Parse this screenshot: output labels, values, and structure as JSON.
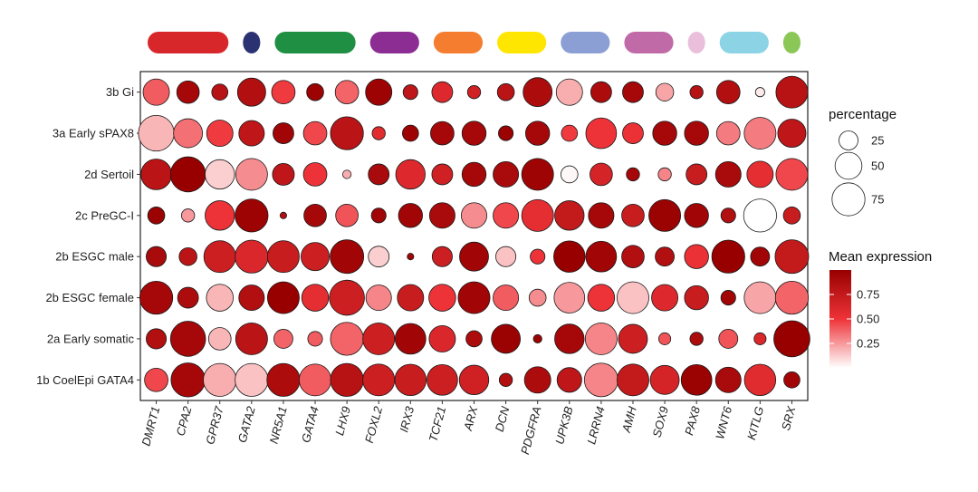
{
  "chart_data": {
    "type": "dotplot",
    "rows": [
      "3b Gi",
      "3a Early sPAX8",
      "2d Sertoil",
      "2c PreGC-I",
      "2b ESGC male",
      "2b ESGC female",
      "2a Early somatic",
      "1b CoelEpi GATA4"
    ],
    "genes": [
      "DMRT1",
      "CPA2",
      "GPR37",
      "GATA2",
      "NR5A1",
      "GATA4",
      "LHX9",
      "FOXL2",
      "IRX3",
      "TCF21",
      "ARX",
      "DCN",
      "PDGFRA",
      "UPK3B",
      "LRRN4",
      "AMH",
      "SOX9",
      "PAX8",
      "WNT6",
      "KITLG",
      "SRX"
    ],
    "group_bars": [
      {
        "span": [
          0,
          2
        ],
        "color": "#d7272b"
      },
      {
        "span": [
          3,
          3
        ],
        "color": "#2b3272"
      },
      {
        "span": [
          4,
          6
        ],
        "color": "#1f8f43"
      },
      {
        "span": [
          7,
          8
        ],
        "color": "#8b2d93"
      },
      {
        "span": [
          9,
          10
        ],
        "color": "#f47d30"
      },
      {
        "span": [
          11,
          12
        ],
        "color": "#ffe600"
      },
      {
        "span": [
          13,
          14
        ],
        "color": "#8c9fd4"
      },
      {
        "span": [
          15,
          16
        ],
        "color": "#c16aa8"
      },
      {
        "span": [
          17,
          17
        ],
        "color": "#e9bfdc"
      },
      {
        "span": [
          18,
          19
        ],
        "color": "#8cd3e6"
      },
      {
        "span": [
          20,
          20
        ],
        "color": "#8bc756"
      }
    ],
    "percentage": [
      [
        48,
        35,
        18,
        55,
        38,
        20,
        38,
        48,
        15,
        30,
        12,
        20,
        58,
        48,
        30,
        30,
        22,
        12,
        38,
        6,
        70
      ],
      [
        88,
        58,
        48,
        45,
        30,
        38,
        75,
        12,
        18,
        38,
        40,
        15,
        40,
        18,
        65,
        30,
        40,
        40,
        38,
        70,
        55
      ],
      [
        65,
        85,
        60,
        70,
        33,
        38,
        5,
        30,
        60,
        30,
        40,
        45,
        70,
        20,
        35,
        12,
        12,
        30,
        45,
        48,
        70
      ],
      [
        20,
        12,
        60,
        75,
        3,
        35,
        35,
        15,
        40,
        45,
        45,
        45,
        70,
        60,
        45,
        35,
        70,
        40,
        15,
        75,
        20
      ],
      [
        28,
        22,
        70,
        75,
        70,
        55,
        78,
        30,
        3,
        28,
        58,
        28,
        15,
        68,
        65,
        35,
        25,
        40,
        75,
        25,
        78
      ],
      [
        75,
        30,
        50,
        45,
        70,
        50,
        85,
        45,
        48,
        50,
        70,
        45,
        20,
        65,
        50,
        70,
        48,
        40,
        15,
        70,
        75
      ],
      [
        28,
        85,
        35,
        70,
        25,
        15,
        75,
        70,
        65,
        48,
        18,
        58,
        5,
        60,
        70,
        58,
        10,
        12,
        25,
        10,
        90
      ],
      [
        38,
        80,
        75,
        75,
        75,
        70,
        75,
        70,
        68,
        65,
        60,
        12,
        48,
        42,
        78,
        70,
        58,
        65,
        45,
        68,
        18
      ]
    ],
    "mean_expression": [
      [
        0.4,
        0.92,
        0.82,
        0.85,
        0.48,
        0.97,
        0.38,
        0.97,
        0.78,
        0.6,
        0.68,
        0.8,
        0.88,
        0.2,
        0.88,
        0.92,
        0.22,
        0.82,
        0.85,
        0.05,
        0.82
      ],
      [
        0.18,
        0.35,
        0.48,
        0.78,
        0.95,
        0.45,
        0.8,
        0.58,
        0.97,
        0.92,
        0.92,
        0.98,
        0.92,
        0.48,
        0.5,
        0.52,
        0.92,
        0.92,
        0.32,
        0.32,
        0.78
      ],
      [
        0.8,
        1.0,
        0.12,
        0.28,
        0.78,
        0.5,
        0.2,
        0.9,
        0.6,
        0.68,
        0.92,
        0.9,
        0.96,
        0.02,
        0.65,
        0.92,
        0.3,
        0.72,
        0.9,
        0.55,
        0.45
      ],
      [
        0.98,
        0.25,
        0.5,
        0.97,
        0.85,
        0.92,
        0.42,
        0.95,
        0.95,
        0.9,
        0.28,
        0.45,
        0.55,
        0.75,
        0.92,
        0.72,
        0.98,
        0.95,
        0.85,
        0.0,
        0.72
      ],
      [
        0.9,
        0.8,
        0.7,
        0.62,
        0.72,
        0.7,
        0.95,
        0.12,
        0.95,
        0.7,
        0.95,
        0.15,
        0.5,
        1.0,
        0.95,
        0.85,
        0.85,
        0.52,
        1.0,
        0.95,
        0.75
      ],
      [
        0.92,
        0.88,
        0.18,
        0.85,
        1.0,
        0.55,
        0.7,
        0.3,
        0.72,
        0.5,
        0.95,
        0.4,
        0.28,
        0.25,
        0.5,
        0.15,
        0.6,
        0.72,
        0.95,
        0.22,
        0.38
      ],
      [
        0.85,
        0.92,
        0.18,
        0.8,
        0.38,
        0.4,
        0.38,
        0.7,
        0.95,
        0.62,
        0.88,
        0.98,
        0.98,
        0.92,
        0.3,
        0.7,
        0.42,
        0.88,
        0.42,
        0.62,
        1.0
      ],
      [
        0.45,
        0.92,
        0.2,
        0.15,
        0.88,
        0.4,
        0.82,
        0.7,
        0.72,
        0.7,
        0.68,
        0.85,
        0.88,
        0.78,
        0.3,
        0.75,
        0.65,
        0.98,
        0.9,
        0.58,
        0.95
      ]
    ],
    "legend_percentage": {
      "title": "percentage",
      "values": [
        25,
        50,
        75
      ]
    },
    "legend_expression": {
      "title": "Mean expression",
      "ticks": [
        0.25,
        0.5,
        0.75
      ],
      "tick_labels": [
        "0.25",
        "0.50",
        "0.75"
      ],
      "range": [
        0,
        1
      ]
    },
    "colors": {
      "low": "#ffffff",
      "mid": "#ee3338",
      "high": "#980000",
      "group_label_dummy": ""
    }
  }
}
